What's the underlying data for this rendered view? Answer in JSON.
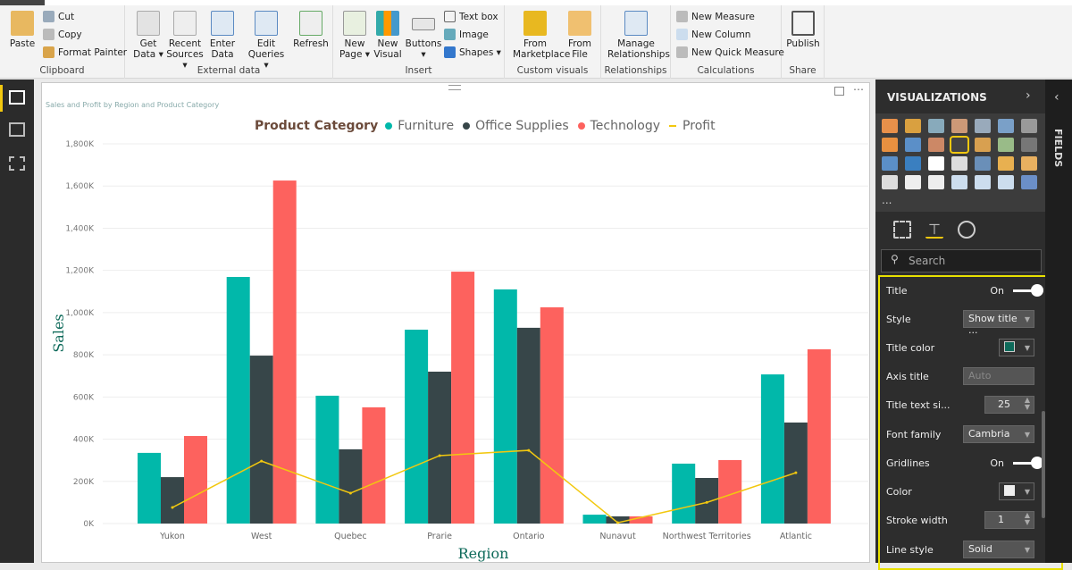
{
  "ribbon": {
    "clipboard": {
      "label": "Clipboard",
      "paste": "Paste",
      "cut": "Cut",
      "copy": "Copy",
      "format_painter": "Format Painter"
    },
    "external": {
      "label": "External data",
      "get_data": "Get Data ▾",
      "recent": "Recent Sources ▾",
      "enter": "Enter Data",
      "edit": "Edit Queries ▾",
      "refresh": "Refresh"
    },
    "insert": {
      "label": "Insert",
      "new_page": "New Page ▾",
      "new_visual": "New Visual",
      "buttons": "Buttons ▾",
      "text_box": "Text box",
      "image": "Image",
      "shapes": "Shapes ▾"
    },
    "custom": {
      "label": "Custom visuals",
      "marketplace": "From Marketplace",
      "file": "From File"
    },
    "relationships": {
      "label": "Relationships",
      "manage": "Manage Relationships"
    },
    "calculations": {
      "label": "Calculations",
      "new_measure": "New Measure",
      "new_column": "New Column",
      "new_quick": "New Quick Measure"
    },
    "share": {
      "label": "Share",
      "publish": "Publish"
    }
  },
  "visual": {
    "title": "Sales and Profit by Region and Product Category"
  },
  "chart_data": {
    "type": "bar",
    "title": "Sales and Profit by Region and Product Category",
    "legend_title": "Product Category",
    "legend_position": "top",
    "xlabel": "Region",
    "ylabel": "Sales",
    "categories": [
      "Yukon",
      "West",
      "Quebec",
      "Prarie",
      "Ontario",
      "Nunavut",
      "Northwest Territories",
      "Atlantic"
    ],
    "yticks": [
      "0K",
      "200K",
      "400K",
      "600K",
      "800K",
      "1,000K",
      "1,200K",
      "1,400K",
      "1,600K",
      "1,800K"
    ],
    "ylim": [
      0,
      1800000
    ],
    "grid": true,
    "series": [
      {
        "name": "Furniture",
        "type": "bar",
        "color": "#01b8aa",
        "values": [
          335000,
          1169000,
          606000,
          919000,
          1110000,
          42000,
          284000,
          707000
        ]
      },
      {
        "name": "Office Supplies",
        "type": "bar",
        "color": "#374649",
        "values": [
          220000,
          796000,
          352000,
          720000,
          928000,
          34000,
          216000,
          479000
        ]
      },
      {
        "name": "Technology",
        "type": "bar",
        "color": "#fd625e",
        "values": [
          415000,
          1626000,
          551000,
          1194000,
          1025000,
          34000,
          301000,
          826000
        ]
      },
      {
        "name": "Profit",
        "type": "line",
        "color": "#f2c80f",
        "values": [
          76000,
          296000,
          144000,
          322000,
          347000,
          4000,
          100000,
          241000
        ]
      }
    ]
  },
  "visualizations": {
    "header": "VISUALIZATIONS",
    "search_placeholder": "Search",
    "more": "...",
    "props": {
      "title": {
        "label": "Title",
        "value": "On"
      },
      "style": {
        "label": "Style",
        "value": "Show title ..."
      },
      "title_color": {
        "label": "Title color",
        "color": "#0e6a5a"
      },
      "axis_title": {
        "label": "Axis title",
        "placeholder": "Auto"
      },
      "title_size": {
        "label": "Title text si...",
        "value": "25"
      },
      "font_family": {
        "label": "Font family",
        "value": "Cambria"
      },
      "gridlines": {
        "label": "Gridlines",
        "value": "On"
      },
      "color": {
        "label": "Color",
        "color": "#eeeeee"
      },
      "stroke": {
        "label": "Stroke width",
        "value": "1"
      },
      "line_style": {
        "label": "Line style",
        "value": "Solid"
      }
    }
  },
  "fields": {
    "label": "FIELDS"
  }
}
